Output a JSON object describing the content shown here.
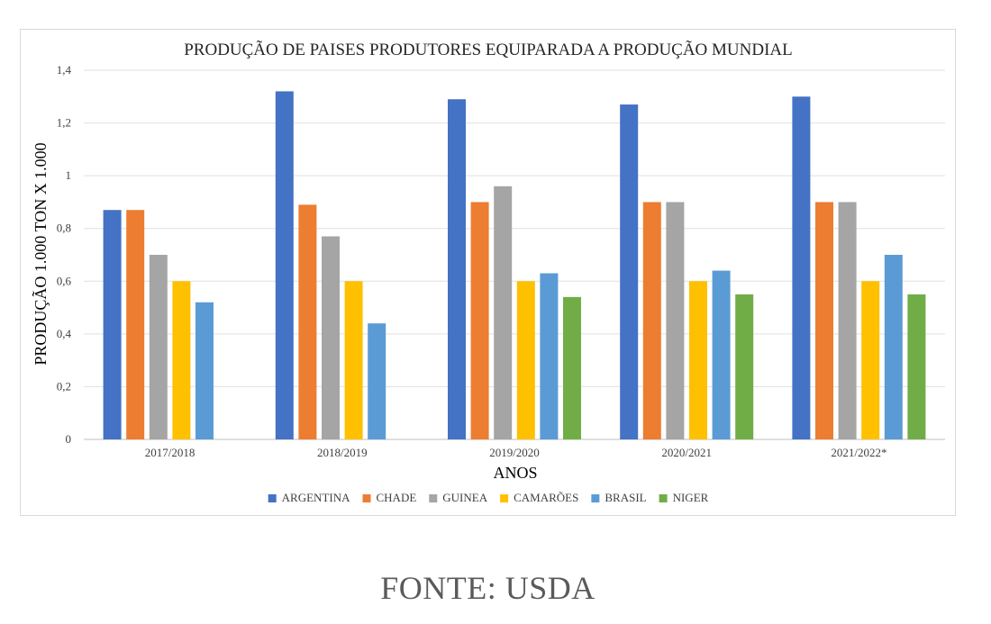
{
  "chart_data": {
    "type": "bar",
    "title": "PRODUÇÃO DE PAISES PRODUTORES EQUIPARADA A PRODUÇÃO MUNDIAL",
    "xlabel": "ANOS",
    "ylabel": "PRODUÇÃO 1.000 TON X 1.000",
    "categories": [
      "2017/2018",
      "2018/2019",
      "2019/2020",
      "2020/2021",
      "2021/2022*"
    ],
    "ylim": [
      0,
      1.4
    ],
    "yticks": [
      "0",
      "0,2",
      "0,4",
      "0,6",
      "0,8",
      "1",
      "1,2",
      "1,4"
    ],
    "grid": true,
    "legend_position": "bottom",
    "series": [
      {
        "name": "ARGENTINA",
        "color": "#4472c4",
        "values": [
          0.87,
          1.32,
          1.29,
          1.27,
          1.3
        ]
      },
      {
        "name": "CHADE",
        "color": "#ed7d31",
        "values": [
          0.87,
          0.89,
          0.9,
          0.9,
          0.9
        ]
      },
      {
        "name": "GUINEA",
        "color": "#a5a5a5",
        "values": [
          0.7,
          0.77,
          0.96,
          0.9,
          0.9
        ]
      },
      {
        "name": "CAMARÕES",
        "color": "#ffc000",
        "values": [
          0.6,
          0.6,
          0.6,
          0.6,
          0.6
        ]
      },
      {
        "name": "BRASIL",
        "color": "#5b9bd5",
        "values": [
          0.52,
          0.44,
          0.63,
          0.64,
          0.7
        ]
      },
      {
        "name": "NIGER",
        "color": "#70ad47",
        "values": [
          null,
          null,
          0.54,
          0.55,
          0.55
        ]
      }
    ]
  },
  "source": "FONTE: USDA"
}
